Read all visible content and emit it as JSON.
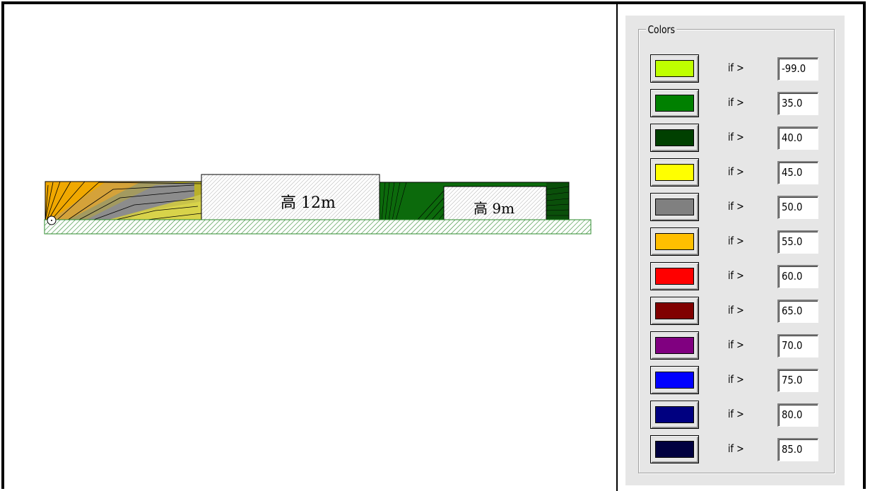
{
  "scene": {
    "buildings": [
      {
        "label": "高 12m"
      },
      {
        "label": "高 9m"
      }
    ]
  },
  "colors_panel": {
    "title": "Colors",
    "condition_label": "if >",
    "rows": [
      {
        "color": "#bfff00",
        "threshold": "-99.0"
      },
      {
        "color": "#008000",
        "threshold": "35.0"
      },
      {
        "color": "#004000",
        "threshold": "40.0"
      },
      {
        "color": "#ffff00",
        "threshold": "45.0"
      },
      {
        "color": "#808080",
        "threshold": "50.0"
      },
      {
        "color": "#ffbf00",
        "threshold": "55.0"
      },
      {
        "color": "#ff0000",
        "threshold": "60.0"
      },
      {
        "color": "#800000",
        "threshold": "65.0"
      },
      {
        "color": "#800080",
        "threshold": "70.0"
      },
      {
        "color": "#0000ff",
        "threshold": "75.0"
      },
      {
        "color": "#000080",
        "threshold": "80.0"
      },
      {
        "color": "#000040",
        "threshold": "85.0"
      }
    ]
  }
}
